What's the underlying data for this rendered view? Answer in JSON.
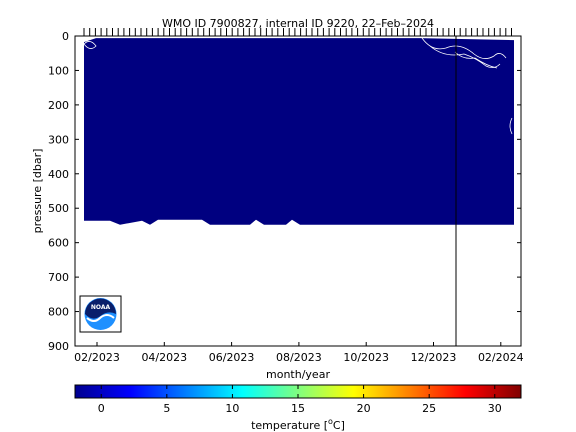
{
  "chart_data": {
    "type": "heatmap",
    "title": "WMO ID 7900827, internal ID 9220, 22–Feb–2024",
    "xlabel": "month/year",
    "ylabel": "pressure [dbar]",
    "x_tick_labels": [
      "02/2023",
      "04/2023",
      "06/2023",
      "08/2023",
      "10/2023",
      "12/2023",
      "02/2024"
    ],
    "y_ticks": [
      0,
      100,
      200,
      300,
      400,
      500,
      600,
      700,
      800,
      900
    ],
    "ylim": [
      900,
      0
    ],
    "fill_color": "#000080",
    "profile_max_pressure": 545,
    "marker_date": "12/2023 (late)",
    "colorbar": {
      "label_prefix": "temperature [",
      "label_sup": "o",
      "label_suffix": "C]",
      "range": [
        -2,
        32
      ],
      "ticks": [
        0,
        5,
        10,
        15,
        20,
        25,
        30
      ]
    }
  },
  "logo": {
    "text": "NOAA",
    "name": "noaa-logo"
  }
}
